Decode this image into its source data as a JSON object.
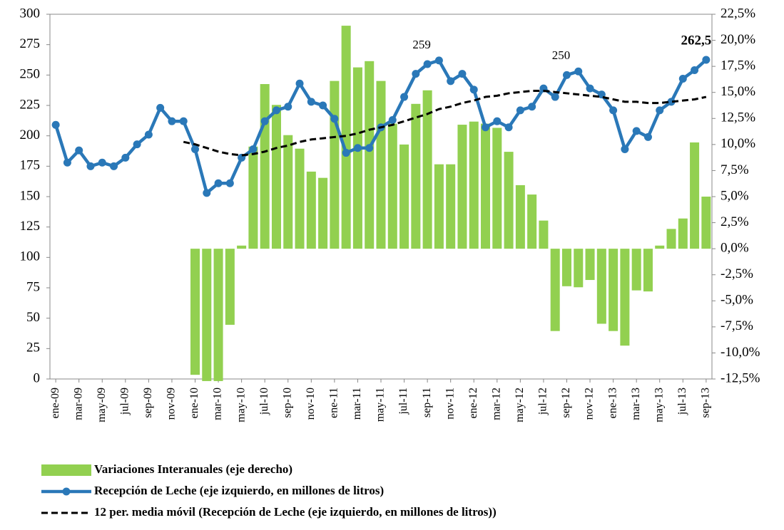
{
  "chart_data": {
    "type": "combo",
    "categories": [
      "ene-09",
      null,
      "mar-09",
      null,
      "may-09",
      null,
      "jul-09",
      null,
      "sep-09",
      null,
      "nov-09",
      null,
      "ene-10",
      null,
      "mar-10",
      null,
      "may-10",
      null,
      "jul-10",
      null,
      "sep-10",
      null,
      "nov-10",
      null,
      "ene-11",
      null,
      "mar-11",
      null,
      "may-11",
      null,
      "jul-11",
      null,
      "sep-11",
      null,
      "nov-11",
      null,
      "ene-12",
      null,
      "mar-12",
      null,
      "may-12",
      null,
      "jul-12",
      null,
      "sep-12",
      null,
      "nov-12",
      null,
      "ene-13",
      null,
      "mar-13",
      null,
      "may-13",
      null,
      "jul-13",
      null,
      "sep-13"
    ],
    "series": [
      {
        "name": "Variaciones Interanuales (eje derecho)",
        "type": "bar",
        "axis": "y2",
        "color": "#92d050",
        "values": [
          null,
          null,
          null,
          null,
          null,
          null,
          null,
          null,
          null,
          null,
          null,
          null,
          -12.1,
          -12.7,
          -12.7,
          -7.3,
          0.3,
          9.8,
          15.8,
          13.8,
          10.9,
          9.6,
          7.4,
          6.8,
          16.1,
          21.4,
          17.4,
          18.0,
          16.1,
          12.0,
          10.0,
          13.9,
          15.2,
          8.1,
          8.1,
          11.9,
          12.2,
          12.0,
          11.6,
          9.3,
          6.1,
          5.2,
          2.7,
          -7.9,
          -3.6,
          -3.7,
          -3.0,
          -7.2,
          -7.9,
          -9.3,
          -4.0,
          -4.1,
          0.3,
          1.9,
          2.9,
          10.2,
          5.0
        ]
      },
      {
        "name": "Recepción de Leche (eje izquierdo, en millones de litros)",
        "type": "line",
        "color": "#2a78b8",
        "markers": true,
        "values": [
          209,
          178,
          188,
          175,
          178,
          175,
          182,
          193,
          201,
          223,
          212,
          212,
          189,
          153,
          161,
          161,
          182,
          189,
          212,
          221,
          224,
          243,
          228,
          225,
          214,
          186,
          190,
          190,
          207,
          213,
          232,
          251,
          259,
          262,
          245,
          251,
          238,
          207,
          212,
          207,
          221,
          224,
          239,
          232,
          250,
          253,
          239,
          234,
          221,
          189,
          204,
          199,
          221,
          228,
          247,
          254,
          262.5
        ],
        "value_labels": [
          null,
          null,
          null,
          null,
          null,
          null,
          null,
          null,
          null,
          null,
          null,
          null,
          null,
          null,
          null,
          null,
          null,
          null,
          null,
          null,
          null,
          null,
          null,
          null,
          null,
          null,
          null,
          null,
          null,
          null,
          null,
          null,
          "259",
          null,
          null,
          null,
          null,
          null,
          null,
          null,
          null,
          null,
          null,
          null,
          "250",
          null,
          null,
          null,
          null,
          null,
          null,
          null,
          null,
          null,
          null,
          null,
          "262,5"
        ],
        "value_label_colors": [
          null,
          null,
          null,
          null,
          null,
          null,
          null,
          null,
          null,
          null,
          null,
          null,
          null,
          null,
          null,
          null,
          null,
          null,
          null,
          null,
          null,
          null,
          null,
          null,
          null,
          null,
          null,
          null,
          null,
          null,
          null,
          null,
          "#000000",
          null,
          null,
          null,
          null,
          null,
          null,
          null,
          null,
          null,
          null,
          null,
          "#000000",
          null,
          null,
          null,
          null,
          null,
          null,
          null,
          null,
          null,
          null,
          null,
          "#c00000"
        ]
      },
      {
        "name": "12 per. media móvil (Recepción de Leche (eje izquierdo, en millones de litros))",
        "type": "line",
        "color": "#000000",
        "dashed": true,
        "values": [
          null,
          null,
          null,
          null,
          null,
          null,
          null,
          null,
          null,
          null,
          null,
          195,
          193,
          190,
          187,
          185,
          184,
          185,
          187,
          190,
          192,
          195,
          197,
          198,
          199,
          200,
          202,
          205,
          207,
          209,
          212,
          215,
          218,
          222,
          224,
          227,
          229,
          232,
          233,
          235,
          236,
          237,
          237,
          236,
          235,
          234,
          233,
          232,
          230,
          228,
          228,
          227,
          227,
          228,
          229,
          230,
          232
        ]
      }
    ],
    "ylim": [
      0,
      300
    ],
    "yticks": [
      0,
      25,
      50,
      75,
      100,
      125,
      150,
      175,
      200,
      225,
      250,
      275,
      300
    ],
    "y2lim": [
      -12.5,
      22.5
    ],
    "y2ticks": [
      {
        "value": -12.5,
        "label": "-12,5%"
      },
      {
        "value": -10,
        "label": "-10,0%"
      },
      {
        "value": -7.5,
        "label": "-7,5%"
      },
      {
        "value": -5,
        "label": "-5,0%"
      },
      {
        "value": -2.5,
        "label": "-2,5%"
      },
      {
        "value": 0,
        "label": "0,0%"
      },
      {
        "value": 2.5,
        "label": "2,5%"
      },
      {
        "value": 5,
        "label": "5,0%"
      },
      {
        "value": 7.5,
        "label": "7,5%"
      },
      {
        "value": 10,
        "label": "10,0%"
      },
      {
        "value": 12.5,
        "label": "12,5%"
      },
      {
        "value": 15,
        "label": "15,0%"
      },
      {
        "value": 17.5,
        "label": "17,5%"
      },
      {
        "value": 20,
        "label": "20,0%"
      },
      {
        "value": 22.5,
        "label": "22,5%"
      }
    ],
    "legend": "bottom"
  }
}
